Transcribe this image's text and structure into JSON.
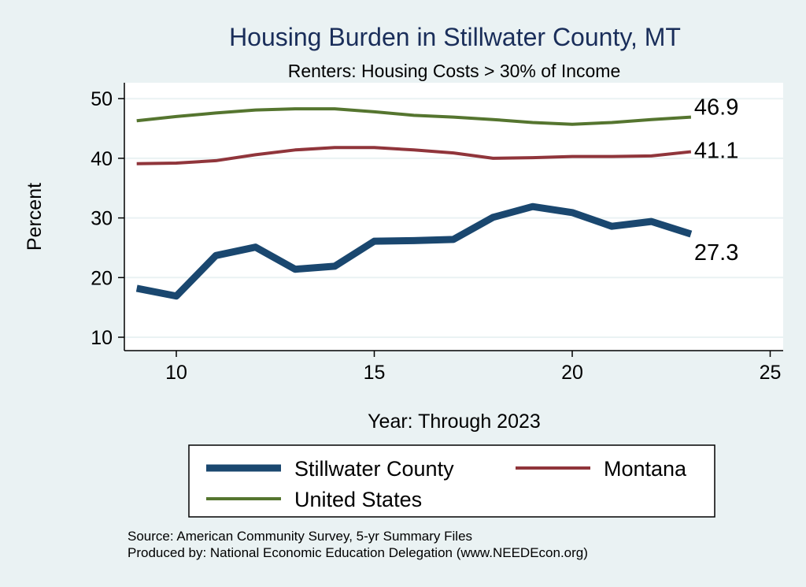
{
  "chart_data": {
    "type": "line",
    "title": "Housing Burden in Stillwater County, MT",
    "subtitle": "Renters: Housing Costs > 30% of Income",
    "xlabel": "Year: Through 2023",
    "ylabel": "Percent",
    "xlim": [
      8.7,
      25.3
    ],
    "ylim": [
      8.7,
      53
    ],
    "xticks": [
      10,
      15,
      20,
      25
    ],
    "yticks": [
      10,
      20,
      30,
      40,
      50
    ],
    "grid": true,
    "legend_position": "bottom",
    "x": [
      9,
      10,
      11,
      12,
      13,
      14,
      15,
      16,
      17,
      18,
      19,
      20,
      21,
      22,
      23
    ],
    "series": [
      {
        "name": "Stillwater County",
        "color": "#1a476f",
        "width": 9,
        "values": [
          18.2,
          16.9,
          23.7,
          25.1,
          21.4,
          21.9,
          26.1,
          26.2,
          26.4,
          30.1,
          31.9,
          30.9,
          28.6,
          29.4,
          27.3
        ],
        "end_label": "27.3"
      },
      {
        "name": "Montana",
        "color": "#90353b",
        "width": 4,
        "values": [
          39.1,
          39.2,
          39.6,
          40.6,
          41.4,
          41.8,
          41.8,
          41.4,
          40.9,
          40.0,
          40.1,
          40.3,
          40.3,
          40.4,
          41.1
        ],
        "end_label": "41.1"
      },
      {
        "name": "United States",
        "color": "#55752f",
        "width": 4,
        "values": [
          46.3,
          47.0,
          47.6,
          48.1,
          48.3,
          48.3,
          47.8,
          47.2,
          46.9,
          46.5,
          46.0,
          45.7,
          46.0,
          46.5,
          46.9
        ],
        "end_label": "46.9"
      }
    ],
    "notes": [
      "Source: American Community Survey, 5-yr Summary Files",
      "Produced by: National Economic Education Delegation (www.NEEDEcon.org)"
    ]
  }
}
